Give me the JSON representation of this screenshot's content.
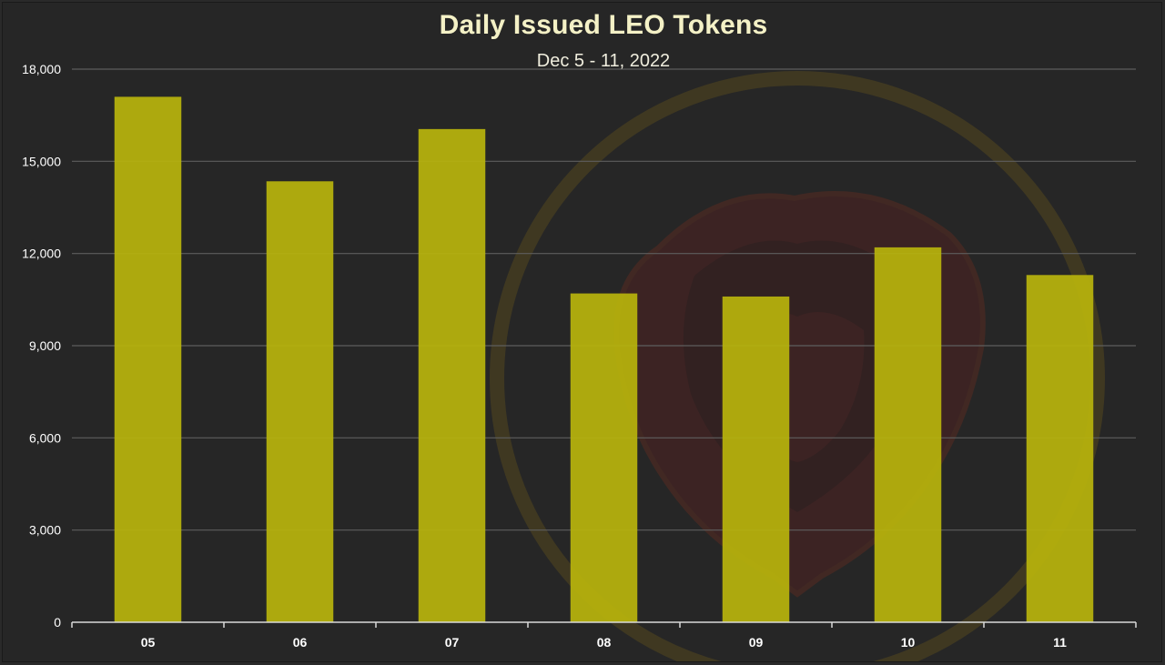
{
  "chart_data": {
    "type": "bar",
    "title": "Daily Issued LEO Tokens",
    "subtitle": "Dec 5 - 11, 2022",
    "categories": [
      "05",
      "06",
      "07",
      "08",
      "09",
      "10",
      "11"
    ],
    "values": [
      17100,
      14350,
      16050,
      10700,
      10600,
      12200,
      11300
    ],
    "ylim": [
      0,
      18000
    ],
    "yticks": [
      0,
      3000,
      6000,
      9000,
      12000,
      15000,
      18000
    ],
    "ytick_labels": [
      "0",
      "3,000",
      "6,000",
      "9,000",
      "12,000",
      "15,000",
      "18,000"
    ],
    "xlabel": "",
    "ylabel": "",
    "grid": true,
    "legend": "none",
    "colors": {
      "bar": "#b8b40c",
      "grid": "#5e5e5e",
      "axis": "#d9d9d9",
      "text": "#ffffff",
      "title": "#f4f1c6",
      "background": "#262626",
      "watermark": "#8a6a14"
    }
  }
}
